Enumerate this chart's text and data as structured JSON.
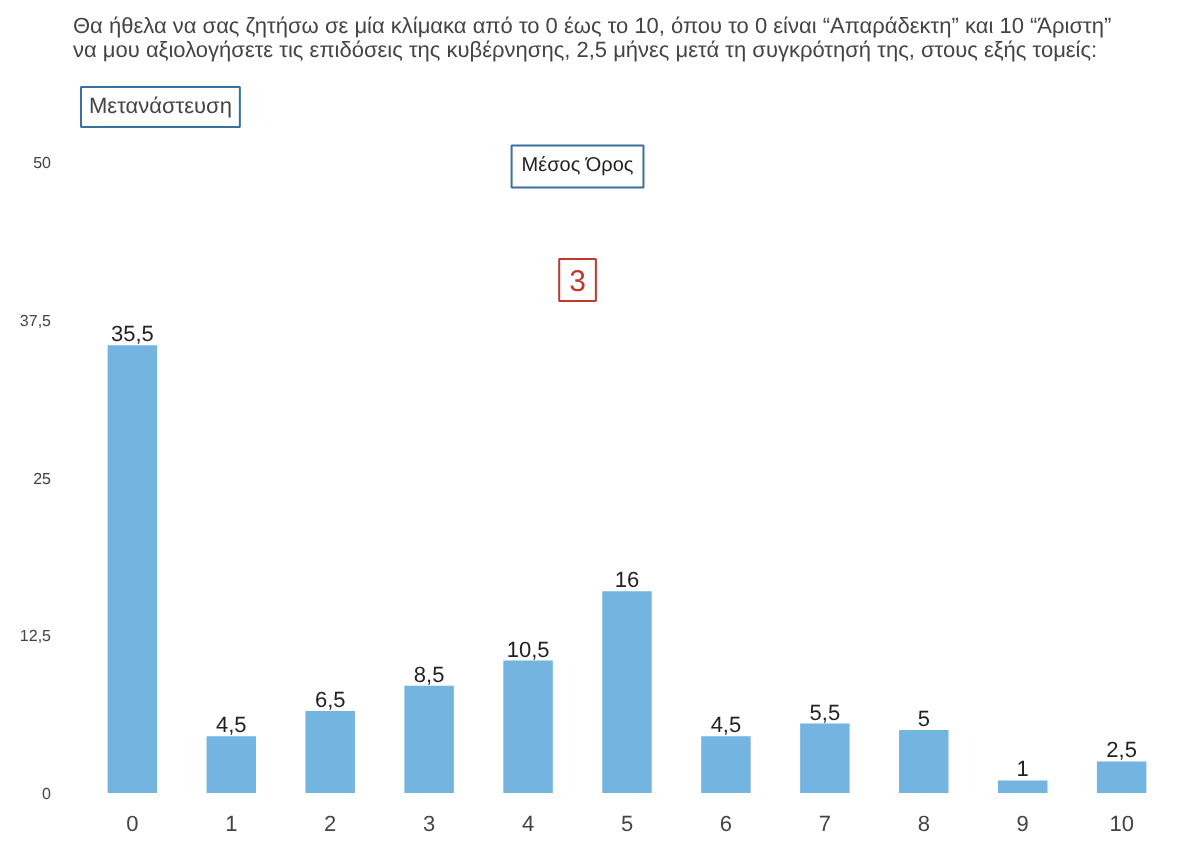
{
  "chart_data": {
    "type": "bar",
    "title": "Θα ήθελα να σας ζητήσω σε μία κλίμακα από το 0 έως το 10, όπου το 0 είναι “Απαράδεκτη” και 10 “Άριστη”\nνα μου αξιολογήσετε τις επιδόσεις της κυβέρνησης, 2,5 μήνες μετά τη συγκρότησή της, στους εξής τομείς:",
    "subtitle": "Μετανάστευση",
    "annotations": [
      "Μέσος Όρος",
      "3"
    ],
    "categories": [
      "0",
      "1",
      "2",
      "3",
      "4",
      "5",
      "6",
      "7",
      "8",
      "9",
      "10"
    ],
    "values": [
      35.5,
      4.5,
      6.5,
      8.5,
      10.5,
      16,
      4.5,
      5.5,
      5,
      1,
      2.5
    ],
    "value_labels": [
      "35,5",
      "4,5",
      "6,5",
      "8,5",
      "10,5",
      "16",
      "4,5",
      "5,5",
      "5",
      "1",
      "2,5"
    ],
    "color": "#74b4e0",
    "ylim": [
      0,
      52
    ],
    "yticks": [
      0,
      {
        "value": 12.5,
        "label": "12,5"
      },
      25,
      {
        "value": 37.5,
        "label": "37,5"
      },
      50
    ],
    "grid": false
  }
}
